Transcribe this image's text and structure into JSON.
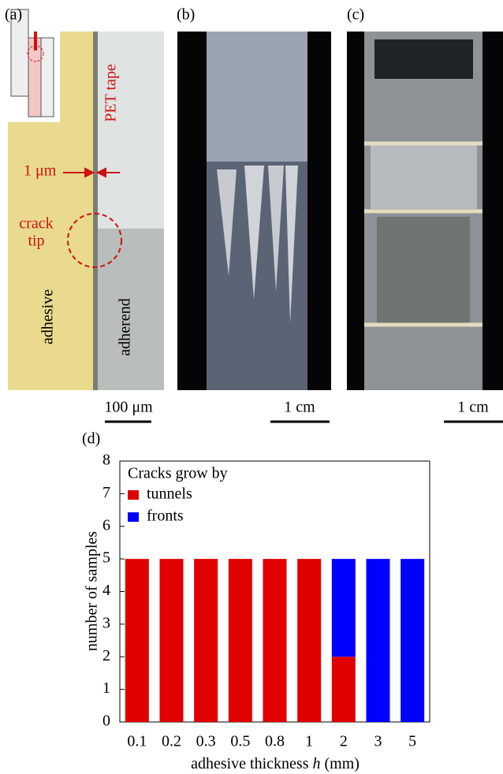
{
  "panel_a": {
    "label": "(a)",
    "pet_tape": "PET tape",
    "width_label": "1 μm",
    "crack_tip": [
      "crack",
      "tip"
    ],
    "adhesive": "adhesive",
    "adherend": "adherend",
    "scale_bar": "100 μm"
  },
  "panel_b": {
    "label": "(b)",
    "scale_bar": "1 cm"
  },
  "panel_c": {
    "label": "(c)",
    "scale_bar": "1 cm"
  },
  "chart_data": {
    "type": "bar",
    "stacked": true,
    "panel_label": "(d)",
    "categories": [
      "0.1",
      "0.2",
      "0.3",
      "0.5",
      "0.8",
      "1",
      "2",
      "3",
      "5"
    ],
    "series": [
      {
        "name": "tunnels",
        "color": "#e00000",
        "values": [
          5,
          5,
          5,
          5,
          5,
          5,
          2,
          0,
          0
        ]
      },
      {
        "name": "fronts",
        "color": "#0000ff",
        "values": [
          0,
          0,
          0,
          0,
          0,
          0,
          3,
          5,
          5
        ]
      }
    ],
    "legend_title": "Cracks grow by",
    "legend_position": "upper left",
    "xlabel": {
      "text": "adhesive thickness",
      "variable": "h",
      "unit": "(mm)"
    },
    "ylabel": "number of samples",
    "ylim": [
      0,
      8
    ],
    "yticks": [
      0,
      1,
      2,
      3,
      4,
      5,
      6,
      7,
      8
    ]
  }
}
